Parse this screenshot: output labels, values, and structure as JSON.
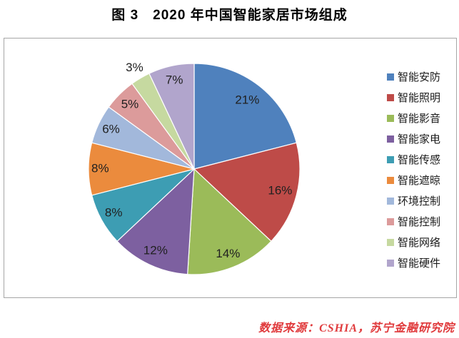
{
  "page": {
    "title": "图 3　2020 年中国智能家居市场组成",
    "source": "数据来源：CSHIA，苏宁金融研究院"
  },
  "chart_data": {
    "type": "pie",
    "title": "图 3　2020 年中国智能家居市场组成",
    "unit": "percent",
    "start_angle_deg": 0,
    "direction": "clockwise",
    "legend_position": "right",
    "label_color": "#202020",
    "slice_border_color": "#ffffff",
    "chart_border_color": "#a6a6a6",
    "source_color": "#e03a3c",
    "slices": [
      {
        "name": "智能安防",
        "value": 21,
        "label": "21%",
        "color": "#4F81BD",
        "label_r": 0.82
      },
      {
        "name": "智能照明",
        "value": 16,
        "label": "16%",
        "color": "#BE4B48",
        "label_r": 0.84
      },
      {
        "name": "智能影音",
        "value": 14,
        "label": "14%",
        "color": "#9BBB59",
        "label_r": 0.87
      },
      {
        "name": "智能家电",
        "value": 12,
        "label": "12%",
        "color": "#7D60A0",
        "label_r": 0.86
      },
      {
        "name": "智能传感",
        "value": 8,
        "label": "8%",
        "color": "#3D9DB3",
        "label_r": 0.87
      },
      {
        "name": "智能遮晾",
        "value": 8,
        "label": "8%",
        "color": "#EB8B3D",
        "label_r": 0.89
      },
      {
        "name": "环境控制",
        "value": 6,
        "label": "6%",
        "color": "#A2B8DB",
        "label_r": 0.87
      },
      {
        "name": "智能控制",
        "value": 5,
        "label": "5%",
        "color": "#DC9B9B",
        "label_r": 0.86
      },
      {
        "name": "智能网络",
        "value": 3,
        "label": "3%",
        "color": "#C6D9A0",
        "label_r": 1.11
      },
      {
        "name": "智能硬件",
        "value": 7,
        "label": "7%",
        "color": "#B1A5CC",
        "label_r": 0.86
      }
    ]
  }
}
